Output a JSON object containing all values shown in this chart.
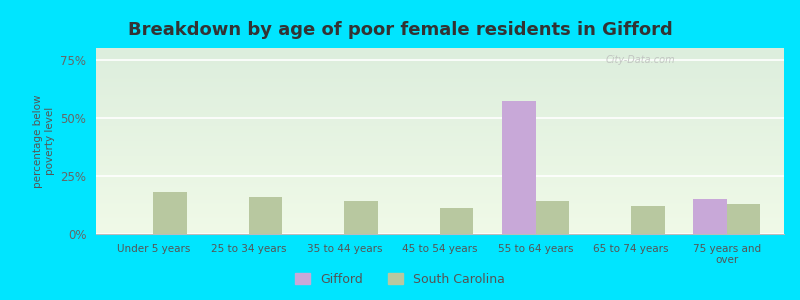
{
  "title": "Breakdown by age of poor female residents in Gifford",
  "categories": [
    "Under 5 years",
    "25 to 34 years",
    "35 to 44 years",
    "45 to 54 years",
    "55 to 64 years",
    "65 to 74 years",
    "75 years and\nover"
  ],
  "gifford_values": [
    0,
    0,
    0,
    0,
    57,
    0,
    15
  ],
  "sc_values": [
    18,
    16,
    14,
    11,
    14,
    12,
    13
  ],
  "gifford_color": "#c8a8d8",
  "sc_color": "#b8c8a0",
  "ylabel": "percentage below\npoverty level",
  "ylim": [
    0,
    80
  ],
  "yticks": [
    0,
    25,
    50,
    75
  ],
  "ytick_labels": [
    "0%",
    "25%",
    "50%",
    "75%"
  ],
  "title_fontsize": 13,
  "bg_top": "#ddeedd",
  "bg_bottom": "#f0fae8",
  "outer_bg": "#00e5ff",
  "bar_width": 0.35,
  "legend_gifford": "Gifford",
  "legend_sc": "South Carolina",
  "watermark": "City-Data.com"
}
